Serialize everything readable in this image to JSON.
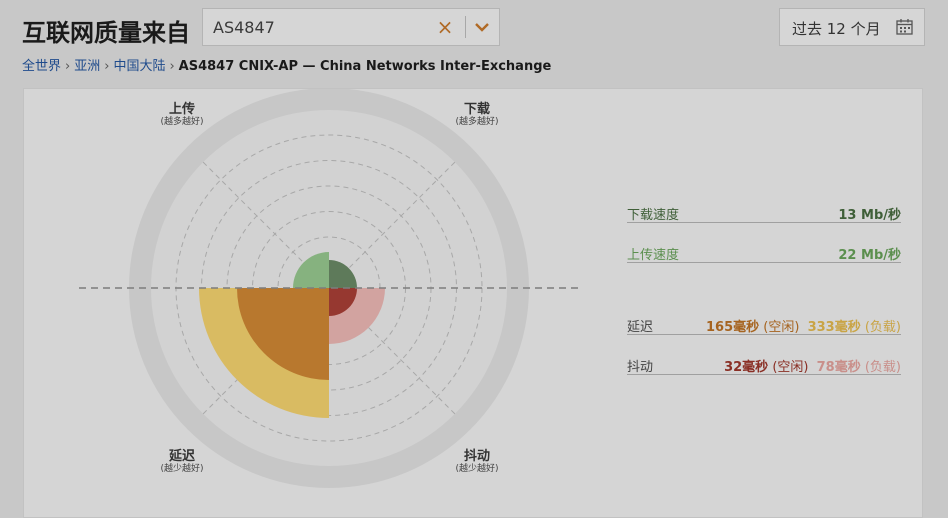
{
  "header": {
    "title": "互联网质量来自",
    "search": {
      "value": "AS4847",
      "clear_symbol": "×"
    },
    "date_range": {
      "label": "过去 12 个月"
    }
  },
  "breadcrumb": {
    "items": [
      "全世界",
      "亚洲",
      "中国大陆"
    ],
    "current": "AS4847 CNIX-AP — China Networks Inter-Exchange"
  },
  "radar": {
    "axes": {
      "upload": {
        "label": "上传",
        "hint": "(越多越好)"
      },
      "download": {
        "label": "下载",
        "hint": "(越多越好)"
      },
      "latency": {
        "label": "延迟",
        "hint": "(越少越好)"
      },
      "jitter": {
        "label": "抖动",
        "hint": "(越少越好)"
      }
    },
    "normalized": {
      "download": 0.14,
      "upload": 0.18,
      "latency_idle": 0.46,
      "latency_loaded": 0.65,
      "jitter_idle": 0.14,
      "jitter_loaded": 0.28
    },
    "colors": {
      "download": "#5e7a5a",
      "upload": "#86b27f",
      "latency_idle": "#b8782e",
      "latency_loaded": "#d9bb62",
      "jitter_idle": "#963830",
      "jitter_loaded": "#d2a3a0",
      "outer_disc": "#c7c7c7",
      "inner_disc": "#d2d2d2"
    }
  },
  "metrics": {
    "download": {
      "label": "下载速度",
      "value": "13 Mb/秒",
      "color": "#3f5f38"
    },
    "upload": {
      "label": "上传速度",
      "value": "22 Mb/秒",
      "color": "#5b8f4e"
    },
    "latency": {
      "label": "延迟",
      "idle_value": "165毫秒",
      "idle_tag": "(空闲)",
      "loaded_value": "333毫秒",
      "loaded_tag": "(负载)",
      "idle_color": "#a66420",
      "loaded_color": "#c9a446"
    },
    "jitter": {
      "label": "抖动",
      "idle_value": "32毫秒",
      "idle_tag": "(空闲)",
      "loaded_value": "78毫秒",
      "loaded_tag": "(负载)",
      "idle_color": "#8a2f25",
      "loaded_color": "#c98f8a"
    }
  }
}
